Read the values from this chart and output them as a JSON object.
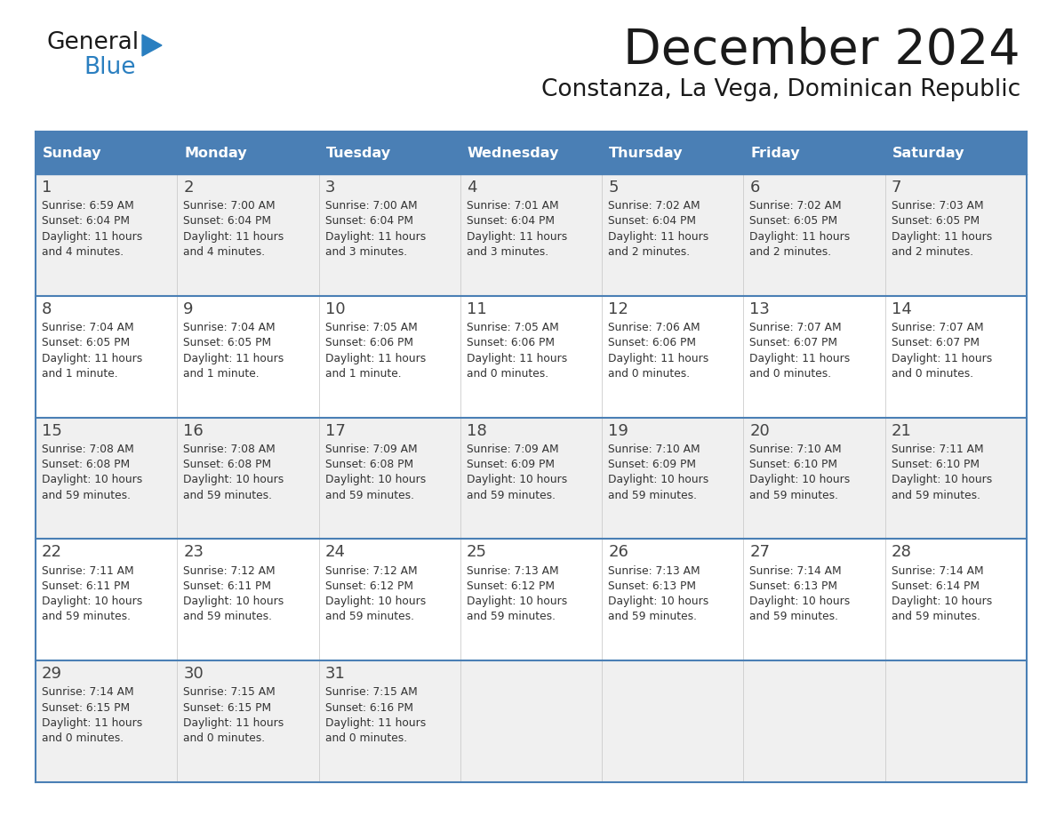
{
  "title": "December 2024",
  "subtitle": "Constanza, La Vega, Dominican Republic",
  "days_of_week": [
    "Sunday",
    "Monday",
    "Tuesday",
    "Wednesday",
    "Thursday",
    "Friday",
    "Saturday"
  ],
  "header_bg": "#4a7fb5",
  "header_text": "#ffffff",
  "cell_bg_odd": "#f0f0f0",
  "cell_bg_even": "#ffffff",
  "border_color": "#4a7fb5",
  "text_color": "#333333",
  "day_num_color": "#444444",
  "calendar_data": [
    {
      "day": 1,
      "col": 0,
      "row": 0,
      "sunrise": "6:59 AM",
      "sunset": "6:04 PM",
      "daylight": "11 hours\nand 4 minutes."
    },
    {
      "day": 2,
      "col": 1,
      "row": 0,
      "sunrise": "7:00 AM",
      "sunset": "6:04 PM",
      "daylight": "11 hours\nand 4 minutes."
    },
    {
      "day": 3,
      "col": 2,
      "row": 0,
      "sunrise": "7:00 AM",
      "sunset": "6:04 PM",
      "daylight": "11 hours\nand 3 minutes."
    },
    {
      "day": 4,
      "col": 3,
      "row": 0,
      "sunrise": "7:01 AM",
      "sunset": "6:04 PM",
      "daylight": "11 hours\nand 3 minutes."
    },
    {
      "day": 5,
      "col": 4,
      "row": 0,
      "sunrise": "7:02 AM",
      "sunset": "6:04 PM",
      "daylight": "11 hours\nand 2 minutes."
    },
    {
      "day": 6,
      "col": 5,
      "row": 0,
      "sunrise": "7:02 AM",
      "sunset": "6:05 PM",
      "daylight": "11 hours\nand 2 minutes."
    },
    {
      "day": 7,
      "col": 6,
      "row": 0,
      "sunrise": "7:03 AM",
      "sunset": "6:05 PM",
      "daylight": "11 hours\nand 2 minutes."
    },
    {
      "day": 8,
      "col": 0,
      "row": 1,
      "sunrise": "7:04 AM",
      "sunset": "6:05 PM",
      "daylight": "11 hours\nand 1 minute."
    },
    {
      "day": 9,
      "col": 1,
      "row": 1,
      "sunrise": "7:04 AM",
      "sunset": "6:05 PM",
      "daylight": "11 hours\nand 1 minute."
    },
    {
      "day": 10,
      "col": 2,
      "row": 1,
      "sunrise": "7:05 AM",
      "sunset": "6:06 PM",
      "daylight": "11 hours\nand 1 minute."
    },
    {
      "day": 11,
      "col": 3,
      "row": 1,
      "sunrise": "7:05 AM",
      "sunset": "6:06 PM",
      "daylight": "11 hours\nand 0 minutes."
    },
    {
      "day": 12,
      "col": 4,
      "row": 1,
      "sunrise": "7:06 AM",
      "sunset": "6:06 PM",
      "daylight": "11 hours\nand 0 minutes."
    },
    {
      "day": 13,
      "col": 5,
      "row": 1,
      "sunrise": "7:07 AM",
      "sunset": "6:07 PM",
      "daylight": "11 hours\nand 0 minutes."
    },
    {
      "day": 14,
      "col": 6,
      "row": 1,
      "sunrise": "7:07 AM",
      "sunset": "6:07 PM",
      "daylight": "11 hours\nand 0 minutes."
    },
    {
      "day": 15,
      "col": 0,
      "row": 2,
      "sunrise": "7:08 AM",
      "sunset": "6:08 PM",
      "daylight": "10 hours\nand 59 minutes."
    },
    {
      "day": 16,
      "col": 1,
      "row": 2,
      "sunrise": "7:08 AM",
      "sunset": "6:08 PM",
      "daylight": "10 hours\nand 59 minutes."
    },
    {
      "day": 17,
      "col": 2,
      "row": 2,
      "sunrise": "7:09 AM",
      "sunset": "6:08 PM",
      "daylight": "10 hours\nand 59 minutes."
    },
    {
      "day": 18,
      "col": 3,
      "row": 2,
      "sunrise": "7:09 AM",
      "sunset": "6:09 PM",
      "daylight": "10 hours\nand 59 minutes."
    },
    {
      "day": 19,
      "col": 4,
      "row": 2,
      "sunrise": "7:10 AM",
      "sunset": "6:09 PM",
      "daylight": "10 hours\nand 59 minutes."
    },
    {
      "day": 20,
      "col": 5,
      "row": 2,
      "sunrise": "7:10 AM",
      "sunset": "6:10 PM",
      "daylight": "10 hours\nand 59 minutes."
    },
    {
      "day": 21,
      "col": 6,
      "row": 2,
      "sunrise": "7:11 AM",
      "sunset": "6:10 PM",
      "daylight": "10 hours\nand 59 minutes."
    },
    {
      "day": 22,
      "col": 0,
      "row": 3,
      "sunrise": "7:11 AM",
      "sunset": "6:11 PM",
      "daylight": "10 hours\nand 59 minutes."
    },
    {
      "day": 23,
      "col": 1,
      "row": 3,
      "sunrise": "7:12 AM",
      "sunset": "6:11 PM",
      "daylight": "10 hours\nand 59 minutes."
    },
    {
      "day": 24,
      "col": 2,
      "row": 3,
      "sunrise": "7:12 AM",
      "sunset": "6:12 PM",
      "daylight": "10 hours\nand 59 minutes."
    },
    {
      "day": 25,
      "col": 3,
      "row": 3,
      "sunrise": "7:13 AM",
      "sunset": "6:12 PM",
      "daylight": "10 hours\nand 59 minutes."
    },
    {
      "day": 26,
      "col": 4,
      "row": 3,
      "sunrise": "7:13 AM",
      "sunset": "6:13 PM",
      "daylight": "10 hours\nand 59 minutes."
    },
    {
      "day": 27,
      "col": 5,
      "row": 3,
      "sunrise": "7:14 AM",
      "sunset": "6:13 PM",
      "daylight": "10 hours\nand 59 minutes."
    },
    {
      "day": 28,
      "col": 6,
      "row": 3,
      "sunrise": "7:14 AM",
      "sunset": "6:14 PM",
      "daylight": "10 hours\nand 59 minutes."
    },
    {
      "day": 29,
      "col": 0,
      "row": 4,
      "sunrise": "7:14 AM",
      "sunset": "6:15 PM",
      "daylight": "11 hours\nand 0 minutes."
    },
    {
      "day": 30,
      "col": 1,
      "row": 4,
      "sunrise": "7:15 AM",
      "sunset": "6:15 PM",
      "daylight": "11 hours\nand 0 minutes."
    },
    {
      "day": 31,
      "col": 2,
      "row": 4,
      "sunrise": "7:15 AM",
      "sunset": "6:16 PM",
      "daylight": "11 hours\nand 0 minutes."
    }
  ],
  "num_rows": 5,
  "logo_text_general": "General",
  "logo_text_blue": "Blue",
  "logo_color_general": "#1a1a1a",
  "logo_color_blue": "#2a7fc0",
  "logo_triangle_color": "#2a7fc0"
}
